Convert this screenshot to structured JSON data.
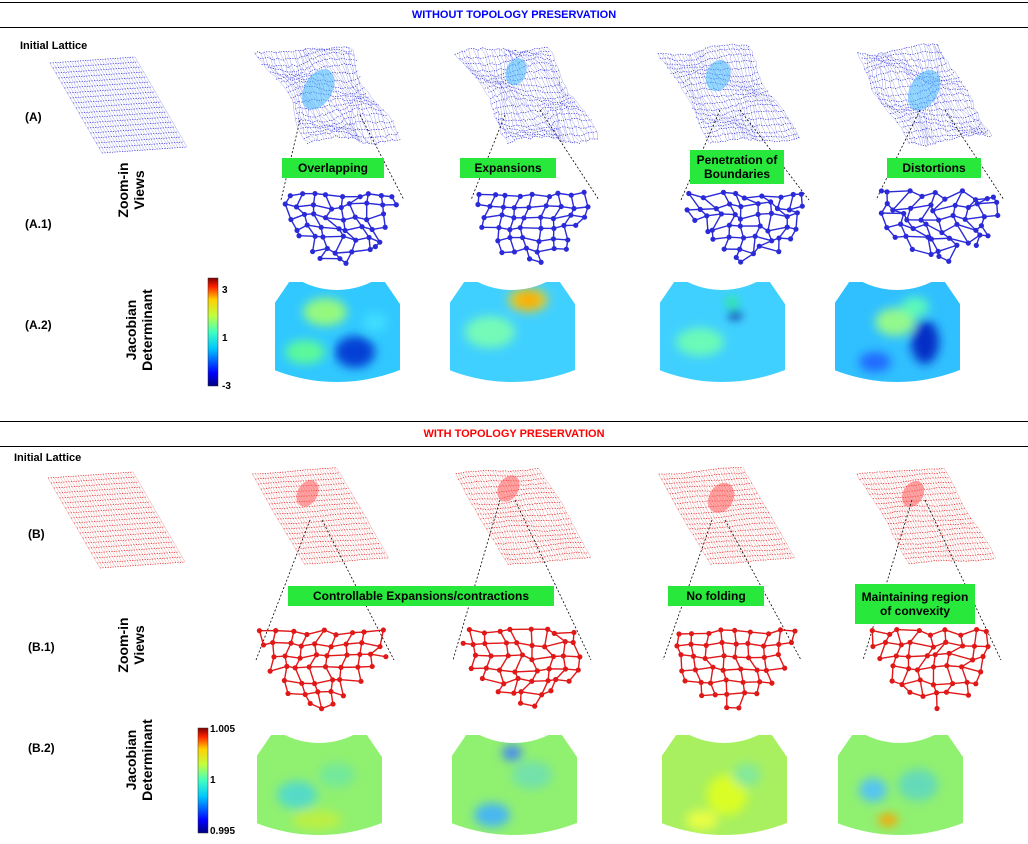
{
  "sections": {
    "top": {
      "title": "WITHOUT TOPOLOGY PRESERVATION",
      "title_color": "#0000ff",
      "initial_label": "Initial Lattice",
      "row_labels": [
        "(A)",
        "(A.1)",
        "(A.2)"
      ],
      "zoom_label": [
        "Zoom-in",
        "Views"
      ],
      "jac_label": [
        "Jacobian",
        "Determinant"
      ],
      "callouts": [
        "Overlapping",
        "Expansions",
        "Penetration of Boundaries",
        "Distortions"
      ],
      "colorbar": {
        "max": "3",
        "mid": "1",
        "min": "-3"
      },
      "lattice_color": "#2a2ad8"
    },
    "bottom": {
      "title": "WITH TOPOLOGY PRESERVATION",
      "title_color": "#ff0000",
      "initial_label": "Initial Lattice",
      "row_labels": [
        "(B)",
        "(B.1)",
        "(B.2)"
      ],
      "zoom_label": [
        "Zoom-in",
        "Views"
      ],
      "jac_label": [
        "Jacobian",
        "Determinant"
      ],
      "callouts": [
        "Controllable Expansions/contractions",
        "No folding",
        "Maintaining region of convexity"
      ],
      "colorbar": {
        "max": "1.005",
        "mid": "1",
        "min": "0.995"
      },
      "lattice_color": "#e01818"
    },
    "callout_color": "#27e83b"
  }
}
